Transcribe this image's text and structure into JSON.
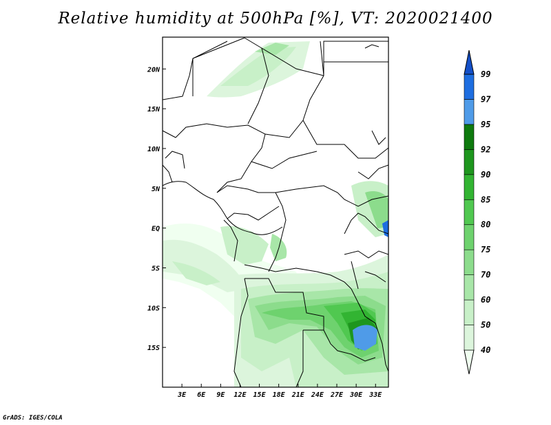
{
  "title": "Relative humidity at 500hPa [%], VT: 2020021400",
  "credit": "GrADS: IGES/COLA",
  "map": {
    "lon_range": [
      0,
      35
    ],
    "lat_range": [
      -20,
      24
    ],
    "lon_ticks": [
      "3E",
      "6E",
      "9E",
      "12E",
      "15E",
      "18E",
      "21E",
      "24E",
      "27E",
      "30E",
      "33E"
    ],
    "lon_tick_values": [
      3,
      6,
      9,
      12,
      15,
      18,
      21,
      24,
      27,
      30,
      33
    ],
    "lat_ticks": [
      "20N",
      "15N",
      "10N",
      "5N",
      "EQ",
      "5S",
      "10S",
      "15S"
    ],
    "lat_tick_values": [
      20,
      15,
      10,
      5,
      0,
      -5,
      -10,
      -15
    ]
  },
  "colorbar": {
    "levels": [
      "40",
      "50",
      "60",
      "70",
      "75",
      "80",
      "85",
      "90",
      "92",
      "95",
      "97",
      "99"
    ],
    "colors": [
      "#f0fff0",
      "#dcf5dc",
      "#c8f0c8",
      "#a8e6a8",
      "#8cdc8c",
      "#6ed26e",
      "#50c850",
      "#32b432",
      "#1e961e",
      "#0e7a0e",
      "#4f9be8",
      "#1e6ee0",
      "#1450c8"
    ]
  }
}
